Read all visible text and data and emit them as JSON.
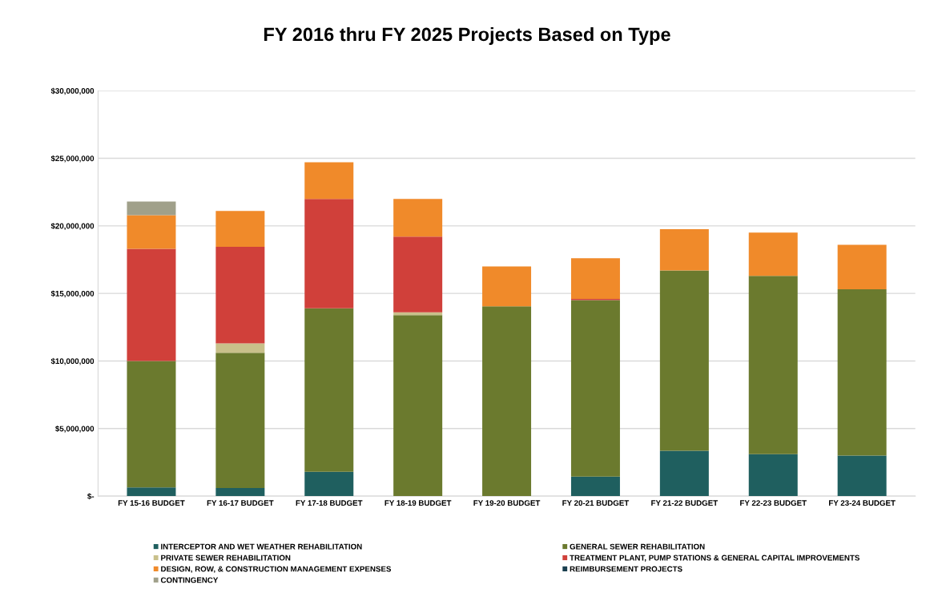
{
  "chart_data": {
    "type": "bar",
    "title": "FY 2016 thru FY 2025 Projects Based on Type",
    "stacked": true,
    "categories": [
      "FY 15-16 BUDGET",
      "FY 16-17 BUDGET",
      "FY 17-18 BUDGET",
      "FY 18-19 BUDGET",
      "FY 19-20 BUDGET",
      "FY 20-21 BUDGET",
      "FY 21-22 BUDGET",
      "FY 22-23 BUDGET",
      "FY 23-24 BUDGET"
    ],
    "series": [
      {
        "name": "INTERCEPTOR AND WET WEATHER REHABILITATION",
        "color": "#1f5f5f",
        "values": [
          650000,
          600000,
          1800000,
          null,
          null,
          1450000,
          3350000,
          3100000,
          3000000
        ]
      },
      {
        "name": "GENERAL SEWER REHABILITATION",
        "color": "#6b7a2e",
        "values": [
          9350000,
          10000000,
          12100000,
          13400000,
          14050000,
          13050000,
          13350000,
          13200000,
          12300000
        ]
      },
      {
        "name": "PRIVATE SEWER REHABILITATION",
        "color": "#c9c08a",
        "values": [
          null,
          700000,
          null,
          200000,
          null,
          null,
          null,
          null,
          null
        ]
      },
      {
        "name": "TREATMENT PLANT, PUMP STATIONS & GENERAL CAPITAL IMPROVEMENTS",
        "color": "#d0403a",
        "values": [
          8300000,
          7150000,
          8100000,
          5600000,
          null,
          100000,
          null,
          null,
          null
        ]
      },
      {
        "name": "DESIGN, ROW, & CONSTRUCTION MANAGEMENT EXPENSES",
        "color": "#f08a2a",
        "values": [
          2500000,
          2650000,
          2700000,
          2800000,
          2950000,
          3000000,
          3050000,
          3200000,
          3300000
        ]
      },
      {
        "name": "REIMBURSEMENT PROJECTS",
        "color": "#1a3f4f",
        "values": [
          null,
          null,
          null,
          null,
          null,
          null,
          null,
          null,
          null
        ]
      },
      {
        "name": "CONTINGENCY",
        "color": "#a0a08a",
        "values": [
          1000000,
          null,
          null,
          null,
          null,
          null,
          null,
          null,
          null
        ]
      }
    ],
    "ylim": [
      0,
      30000000
    ],
    "yticks": [
      {
        "value": 0,
        "label": "$-"
      },
      {
        "value": 5000000,
        "label": "$5,000,000"
      },
      {
        "value": 10000000,
        "label": "$10,000,000"
      },
      {
        "value": 15000000,
        "label": "$15,000,000"
      },
      {
        "value": 20000000,
        "label": "$20,000,000"
      },
      {
        "value": 25000000,
        "label": "$25,000,000"
      },
      {
        "value": 30000000,
        "label": "$30,000,000"
      }
    ],
    "grid": "y",
    "legend": "bottom"
  }
}
